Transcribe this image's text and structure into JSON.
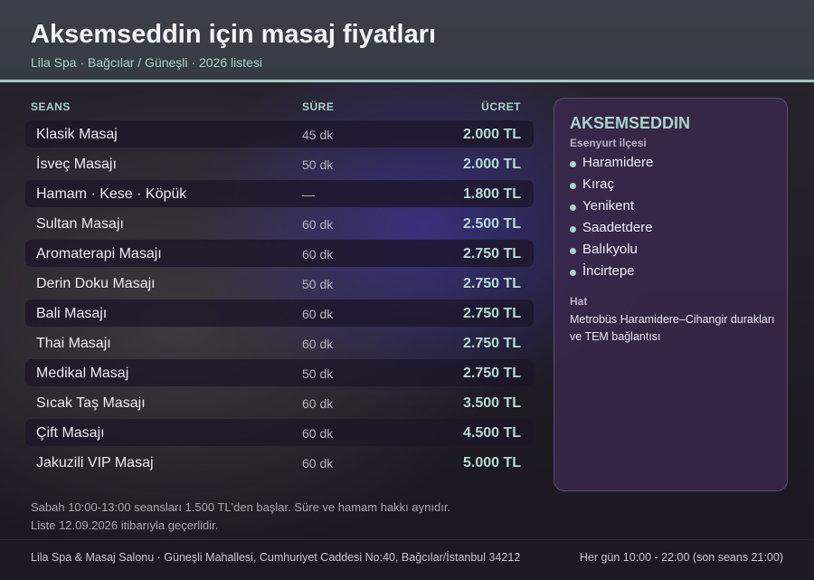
{
  "header": {
    "title": "Aksemseddin için masaj fiyatları",
    "subtitle": "Lila Spa · Bağcılar / Güneşli · 2026 listesi"
  },
  "table": {
    "columns": {
      "name": "SEANS",
      "duration": "SÜRE",
      "price": "ÜCRET"
    },
    "rows": [
      {
        "name": "Klasik Masaj",
        "duration": "45 dk",
        "price": "2.000 TL",
        "shaded": true
      },
      {
        "name": "İsveç Masajı",
        "duration": "50 dk",
        "price": "2.000 TL",
        "shaded": false
      },
      {
        "name": "Hamam · Kese · Köpük",
        "duration": "—",
        "price": "1.800 TL",
        "shaded": true
      },
      {
        "name": "Sultan Masajı",
        "duration": "60 dk",
        "price": "2.500 TL",
        "shaded": false
      },
      {
        "name": "Aromaterapi Masajı",
        "duration": "60 dk",
        "price": "2.750 TL",
        "shaded": true
      },
      {
        "name": "Derin Doku Masajı",
        "duration": "50 dk",
        "price": "2.750 TL",
        "shaded": false
      },
      {
        "name": "Bali Masajı",
        "duration": "60 dk",
        "price": "2.750 TL",
        "shaded": true
      },
      {
        "name": "Thai Masajı",
        "duration": "60 dk",
        "price": "2.750 TL",
        "shaded": false
      },
      {
        "name": "Medikal Masaj",
        "duration": "50 dk",
        "price": "2.750 TL",
        "shaded": true
      },
      {
        "name": "Sıcak Taş Masajı",
        "duration": "60 dk",
        "price": "3.500 TL",
        "shaded": false
      },
      {
        "name": "Çift Masajı",
        "duration": "60 dk",
        "price": "4.500 TL",
        "shaded": true
      },
      {
        "name": "Jakuzili VIP Masaj",
        "duration": "60 dk",
        "price": "5.000 TL",
        "shaded": false
      }
    ]
  },
  "notes": {
    "line1": "Sabah 10:00-13:00 seansları 1.500 TL'den başlar. Süre ve hamam hakkı aynıdır.",
    "line2": "Liste 12.09.2026 itibarıyla geçerlidir."
  },
  "panel": {
    "title": "AKSEMSEDDIN",
    "subtitle": "Esenyurt ilçesi",
    "places": [
      "Haramidere",
      "Kıraç",
      "Yenikent",
      "Saadetdere",
      "Balıkyolu",
      "İncirtepe"
    ],
    "hat_label": "Hat",
    "hat_line1": "Metrobüs Haramidere–Cihangir durakları",
    "hat_line2": "ve TEM bağlantısı"
  },
  "footer": {
    "left": "Lila Spa & Masaj Salonu · Güneşli Mahallesi, Cumhuriyet Caddesi No:40, Bağcılar/İstanbul 34212",
    "right": "Her gün 10:00 - 22:00 (son seans 21:00)"
  },
  "colors": {
    "accent": "#a9d3c9",
    "header_bg": "#3a3f48",
    "panel_bg": "#3a284c"
  }
}
